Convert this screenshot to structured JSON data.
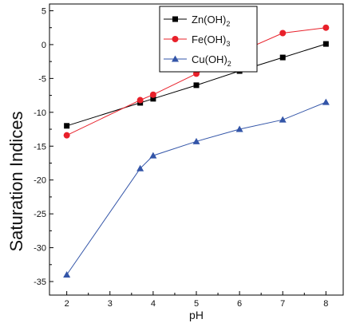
{
  "chart_data": {
    "type": "line",
    "xlabel": "pH",
    "ylabel": "Saturation Indices",
    "xlim": [
      1.6,
      8.4
    ],
    "ylim": [
      -37,
      6
    ],
    "xticks": [
      2,
      3,
      4,
      5,
      6,
      7,
      8
    ],
    "yticks": [
      5,
      0,
      -5,
      -10,
      -15,
      -20,
      -25,
      -30,
      -35
    ],
    "grid": false,
    "legend_position": "top-right",
    "series": [
      {
        "name": "Zn(OH)",
        "name_subscript": "2",
        "color": "#000000",
        "marker": "square",
        "x": [
          2,
          3.7,
          4,
          5,
          6,
          7,
          8
        ],
        "y": [
          -12.0,
          -8.6,
          -8.0,
          -6.0,
          -3.9,
          -1.9,
          0.1
        ]
      },
      {
        "name": "Fe(OH)",
        "name_subscript": "3",
        "color": "#e8202a",
        "marker": "circle",
        "x": [
          2,
          3.7,
          4,
          5,
          6,
          7,
          8
        ],
        "y": [
          -13.4,
          -8.2,
          -7.4,
          -4.3,
          -1.1,
          1.7,
          2.5
        ]
      },
      {
        "name": "Cu(OH)",
        "name_subscript": "2",
        "color": "#3355a8",
        "marker": "triangle",
        "x": [
          2,
          3.7,
          4,
          5,
          6,
          7,
          8
        ],
        "y": [
          -34.0,
          -18.3,
          -16.4,
          -14.3,
          -12.5,
          -11.1,
          -8.5
        ]
      }
    ]
  }
}
